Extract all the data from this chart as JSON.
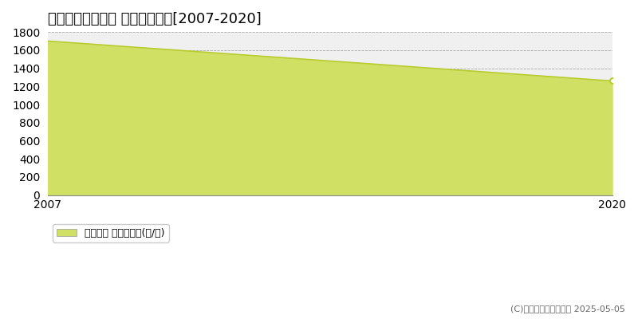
{
  "title": "多気郡多気町車川 農地価格推移[2007-2020]",
  "years": [
    2007,
    2020
  ],
  "values": [
    1700,
    1260
  ],
  "ylim": [
    0,
    1800
  ],
  "yticks": [
    0,
    200,
    400,
    600,
    800,
    1000,
    1200,
    1400,
    1600,
    1800
  ],
  "xlim": [
    2007,
    2020
  ],
  "line_color": "#b8cc30",
  "fill_color": "#cfe065",
  "fill_alpha": 1.0,
  "marker_color": "#b8cc30",
  "bg_color": "#f0f0f0",
  "grid_color": "#999999",
  "legend_label": "農地価格 平均坪単価(円/坪)",
  "copyright": "(C)土地価格ドットコム 2025-05-05",
  "title_fontsize": 13,
  "label_fontsize": 10
}
